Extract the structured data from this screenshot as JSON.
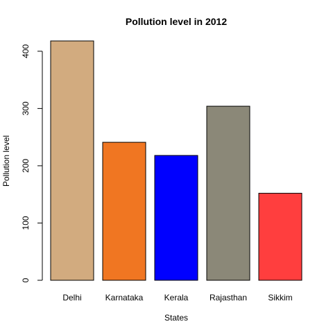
{
  "chart_data": {
    "type": "bar",
    "title": "Pollution level in 2012",
    "xlabel": "States",
    "ylabel": "Pollution level",
    "categories": [
      "Delhi",
      "Karnataka",
      "Kerala",
      "Rajasthan",
      "Sikkim"
    ],
    "values": [
      418,
      241,
      218,
      304,
      152
    ],
    "colors": [
      "#D2AB7F",
      "#F07622",
      "#0000FF",
      "#8B8878",
      "#FF3E3E"
    ],
    "ylim": [
      0,
      418
    ],
    "yticks": [
      0,
      100,
      200,
      300,
      400
    ],
    "grid": false,
    "legend": "none"
  }
}
